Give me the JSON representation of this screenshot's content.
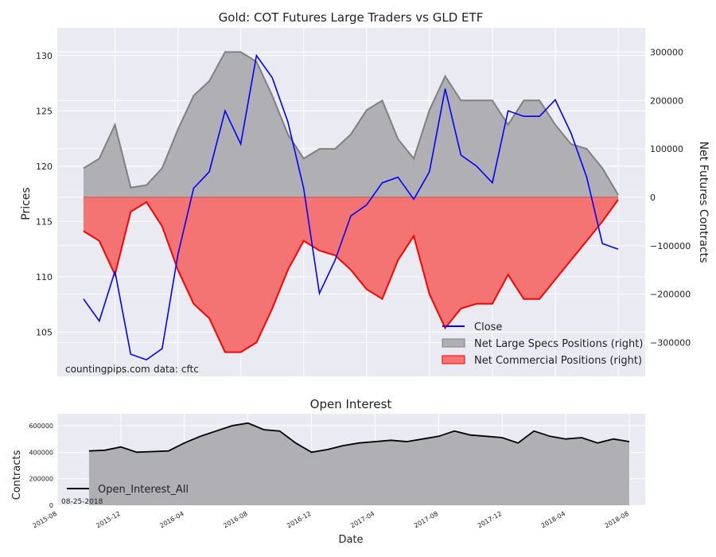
{
  "chart_data": [
    {
      "type": "line",
      "title": "Gold: COT Futures Large Traders vs GLD ETF",
      "ylabel": "Prices",
      "y2label": "Net Futures Contracts",
      "ylim": [
        101,
        132.5
      ],
      "y2lim": [
        -370000,
        350000
      ],
      "yticks": [
        105,
        110,
        115,
        120,
        125,
        130
      ],
      "y2ticks": [
        -300000,
        -200000,
        -100000,
        0,
        100000,
        200000,
        300000
      ],
      "y2tick_labels": [
        "−300000",
        "−200000",
        "−100000",
        "0",
        "100000",
        "200000",
        "300000"
      ],
      "x": [
        "2015-10",
        "2015-11",
        "2015-12",
        "2016-01",
        "2016-02",
        "2016-03",
        "2016-04",
        "2016-05",
        "2016-06",
        "2016-07",
        "2016-08",
        "2016-09",
        "2016-10",
        "2016-11",
        "2016-12",
        "2017-01",
        "2017-02",
        "2017-03",
        "2017-04",
        "2017-05",
        "2017-06",
        "2017-07",
        "2017-08",
        "2017-09",
        "2017-10",
        "2017-11",
        "2017-12",
        "2018-01",
        "2018-02",
        "2018-03",
        "2018-04",
        "2018-05",
        "2018-06",
        "2018-07",
        "2018-08"
      ],
      "series": [
        {
          "name": "Close",
          "axis": "left",
          "color": "#0000ff",
          "values": [
            108.0,
            106.0,
            110.5,
            103.0,
            102.5,
            103.5,
            112.0,
            118.0,
            119.5,
            125.0,
            122.0,
            130.0,
            128.0,
            124.0,
            118.0,
            108.5,
            111.5,
            115.5,
            116.5,
            118.5,
            119.0,
            117.0,
            119.5,
            127.0,
            121.0,
            120.0,
            118.5,
            125.0,
            124.5,
            124.5,
            126.0,
            123.0,
            119.0,
            113.0,
            112.5
          ]
        },
        {
          "name": "Net Large Specs Positions (right)",
          "axis": "right",
          "color": "#808080",
          "values": [
            60000,
            80000,
            150000,
            20000,
            25000,
            60000,
            140000,
            210000,
            240000,
            300000,
            300000,
            280000,
            210000,
            130000,
            80000,
            100000,
            100000,
            130000,
            180000,
            200000,
            120000,
            80000,
            180000,
            250000,
            200000,
            200000,
            200000,
            150000,
            200000,
            200000,
            150000,
            110000,
            100000,
            60000,
            5000
          ]
        },
        {
          "name": "Net Commercial Positions (right)",
          "axis": "right",
          "color": "#ff0000",
          "values": [
            -70000,
            -90000,
            -160000,
            -30000,
            -10000,
            -60000,
            -150000,
            -220000,
            -250000,
            -320000,
            -320000,
            -300000,
            -230000,
            -150000,
            -90000,
            -110000,
            -120000,
            -150000,
            -190000,
            -210000,
            -130000,
            -80000,
            -200000,
            -270000,
            -230000,
            -220000,
            -220000,
            -160000,
            -210000,
            -210000,
            -170000,
            -130000,
            -90000,
            -50000,
            -5000
          ]
        }
      ],
      "legend": {
        "placement": "bottom-right",
        "entries": [
          "Close",
          "Net Large Specs Positions (right)",
          "Net Commercial Positions (right)"
        ]
      },
      "annotations": [
        "countingpips.com",
        "data: cftc"
      ],
      "grid": true
    },
    {
      "type": "area",
      "title": "Open Interest",
      "xlabel": "Date",
      "ylabel": "Contracts",
      "ylim": [
        0,
        690000
      ],
      "yticks": [
        0,
        200000,
        400000,
        600000
      ],
      "xlim": [
        "2015-08",
        "2018-09"
      ],
      "xtick_labels": [
        "2015-08",
        "2015-12",
        "2016-04",
        "2016-08",
        "2016-12",
        "2017-04",
        "2017-08",
        "2017-12",
        "2018-04",
        "2018-08"
      ],
      "series": [
        {
          "name": "Open_Interest_All",
          "color": "#000000",
          "values": [
            410000,
            415000,
            440000,
            400000,
            405000,
            410000,
            470000,
            520000,
            560000,
            600000,
            620000,
            570000,
            560000,
            470000,
            400000,
            420000,
            450000,
            470000,
            480000,
            490000,
            480000,
            500000,
            520000,
            560000,
            530000,
            520000,
            510000,
            470000,
            560000,
            520000,
            500000,
            510000,
            470000,
            500000,
            480000
          ]
        }
      ],
      "legend": {
        "placement": "bottom-left",
        "entries": [
          "Open_Interest_All"
        ]
      },
      "annotations": [
        "08-25-2018"
      ],
      "grid": true
    }
  ]
}
